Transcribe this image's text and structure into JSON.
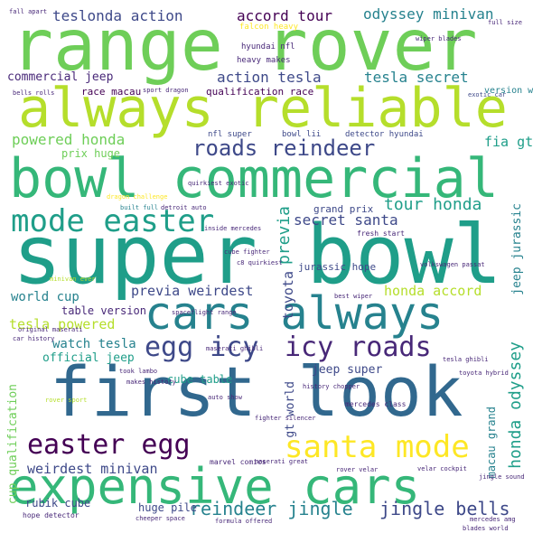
{
  "palette": {
    "dark_purple": "#440154",
    "purple": "#482878",
    "indigo": "#3e4989",
    "blue": "#31688e",
    "teal_blue": "#26828e",
    "teal": "#1f9e89",
    "green": "#35b779",
    "light_green": "#6ece58",
    "lime": "#b5de2b",
    "yellow": "#fde725"
  },
  "words": [
    {
      "text": "range rover",
      "color": "light_green"
    },
    {
      "text": "always reliable",
      "color": "lime"
    },
    {
      "text": "bowl commercial",
      "color": "green"
    },
    {
      "text": "super bowl",
      "color": "teal"
    },
    {
      "text": "first look",
      "color": "blue"
    },
    {
      "text": "expensive cars",
      "color": "green"
    },
    {
      "text": "cars always",
      "color": "teal_blue"
    },
    {
      "text": "mode easter",
      "color": "teal"
    },
    {
      "text": "santa mode",
      "color": "yellow"
    },
    {
      "text": "easter egg",
      "color": "dark_purple"
    },
    {
      "text": "egg icy",
      "color": "indigo"
    },
    {
      "text": "icy roads",
      "color": "purple"
    },
    {
      "text": "roads reindeer",
      "color": "indigo"
    },
    {
      "text": "reindeer jingle",
      "color": "teal_blue"
    },
    {
      "text": "jingle bells",
      "color": "indigo"
    },
    {
      "text": "teslonda action",
      "color": "indigo"
    },
    {
      "text": "accord tour",
      "color": "dark_purple"
    },
    {
      "text": "odyssey minivan",
      "color": "teal_blue"
    },
    {
      "text": "commercial jeep",
      "color": "purple"
    },
    {
      "text": "action tesla",
      "color": "indigo"
    },
    {
      "text": "tesla secret",
      "color": "teal_blue"
    },
    {
      "text": "powered honda",
      "color": "light_green"
    },
    {
      "text": "secret santa",
      "color": "indigo"
    },
    {
      "text": "tour honda",
      "color": "teal"
    },
    {
      "text": "honda accord",
      "color": "lime"
    },
    {
      "text": "previa weirdest",
      "color": "indigo"
    },
    {
      "text": "weirdest minivan",
      "color": "indigo"
    },
    {
      "text": "world cup",
      "color": "teal_blue"
    },
    {
      "text": "table version",
      "color": "purple"
    },
    {
      "text": "tesla powered",
      "color": "lime"
    },
    {
      "text": "watch tesla",
      "color": "teal_blue"
    },
    {
      "text": "official jeep",
      "color": "teal"
    },
    {
      "text": "jeep super",
      "color": "indigo"
    },
    {
      "text": "cube table",
      "color": "teal"
    },
    {
      "text": "rubik cube",
      "color": "indigo"
    },
    {
      "text": "huge pile",
      "color": "indigo"
    },
    {
      "text": "race macau",
      "color": "dark_purple"
    },
    {
      "text": "qualification race",
      "color": "dark_purple"
    },
    {
      "text": "grand prix",
      "color": "indigo"
    },
    {
      "text": "jurassic hope",
      "color": "indigo"
    },
    {
      "text": "prix huge",
      "color": "light_green"
    },
    {
      "text": "fia gt",
      "color": "teal"
    },
    {
      "text": "previa",
      "color": "teal"
    },
    {
      "text": "toyota",
      "color": "indigo"
    },
    {
      "text": "gt world",
      "color": "indigo"
    },
    {
      "text": "honda odyssey",
      "color": "teal"
    },
    {
      "text": "jeep jurassic",
      "color": "teal_blue"
    },
    {
      "text": "cup qualification",
      "color": "light_green"
    },
    {
      "text": "macau grand",
      "color": "teal_blue"
    },
    {
      "text": "falcon heavy",
      "color": "yellow"
    },
    {
      "text": "hyundai nfl",
      "color": "purple"
    },
    {
      "text": "heavy makes",
      "color": "purple"
    },
    {
      "text": "nfl super",
      "color": "indigo"
    },
    {
      "text": "bowl lii",
      "color": "indigo"
    },
    {
      "text": "detector hyundai",
      "color": "indigo"
    },
    {
      "text": "version watch",
      "color": "teal_blue"
    },
    {
      "text": "exotic car",
      "color": "indigo"
    },
    {
      "text": "dragon challenge",
      "color": "yellow"
    },
    {
      "text": "built full",
      "color": "teal_blue"
    },
    {
      "text": "detroit auto",
      "color": "purple"
    },
    {
      "text": "inside mercedes",
      "color": "purple"
    },
    {
      "text": "fresh start",
      "color": "purple"
    },
    {
      "text": "volkswagen passat",
      "color": "purple"
    },
    {
      "text": "minivan ever",
      "color": "lime"
    },
    {
      "text": "original maserati",
      "color": "purple"
    },
    {
      "text": "took lambo",
      "color": "purple"
    },
    {
      "text": "makes history",
      "color": "purple"
    },
    {
      "text": "mercedes class",
      "color": "purple"
    },
    {
      "text": "history chopper",
      "color": "purple"
    },
    {
      "text": "fighter silencer",
      "color": "purple"
    },
    {
      "text": "marvel comics",
      "color": "purple"
    },
    {
      "text": "maserati great",
      "color": "purple"
    },
    {
      "text": "rover sport",
      "color": "lime"
    },
    {
      "text": "hope detector",
      "color": "purple"
    },
    {
      "text": "spaceflight range",
      "color": "purple"
    },
    {
      "text": "full size",
      "color": "purple"
    },
    {
      "text": "fall apart",
      "color": "purple"
    },
    {
      "text": "bells rolls",
      "color": "purple"
    },
    {
      "text": "sport dragon",
      "color": "purple"
    },
    {
      "text": "auto show",
      "color": "purple"
    },
    {
      "text": "best wiper",
      "color": "purple"
    },
    {
      "text": "mercedes amg",
      "color": "purple"
    },
    {
      "text": "cheeper space",
      "color": "purple"
    },
    {
      "text": "formula offered",
      "color": "purple"
    },
    {
      "text": "blades world",
      "color": "purple"
    },
    {
      "text": "velar cockpit",
      "color": "purple"
    },
    {
      "text": "maserati ghibli",
      "color": "purple"
    },
    {
      "text": "cube fighter",
      "color": "purple"
    },
    {
      "text": "car history",
      "color": "purple"
    },
    {
      "text": "c8 quirkiest",
      "color": "purple"
    },
    {
      "text": "quirkiest exotic",
      "color": "purple"
    },
    {
      "text": "tesla ghibli",
      "color": "purple"
    },
    {
      "text": "toyota hybrid",
      "color": "purple"
    },
    {
      "text": "jingle sound",
      "color": "purple"
    },
    {
      "text": "wiper blades",
      "color": "purple"
    },
    {
      "text": "rover velar",
      "color": "purple"
    }
  ]
}
